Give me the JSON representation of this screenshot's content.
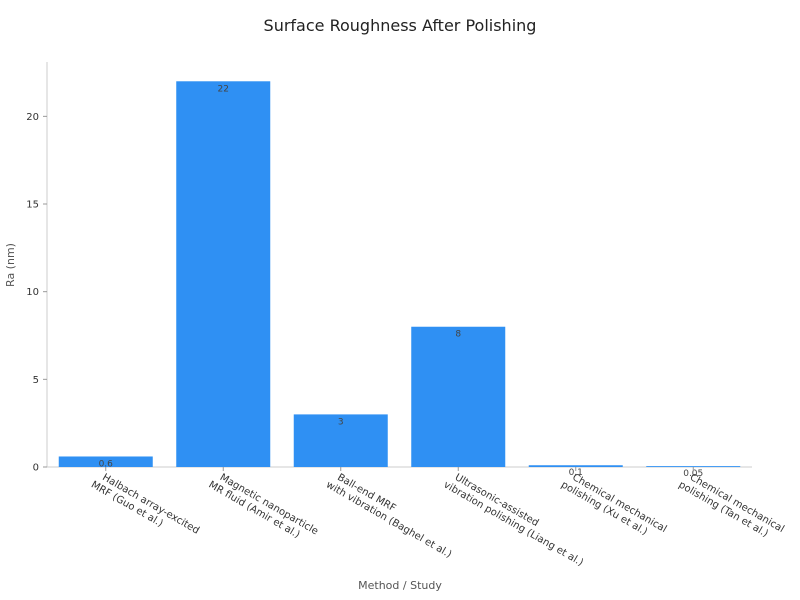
{
  "chart_data": {
    "type": "bar",
    "title": "Surface Roughness After Polishing",
    "x_label": "Method / Study",
    "y_label": "Ra (nm)",
    "categories": [
      [
        "Halbach array-excited",
        "MRF (Guo et al.)"
      ],
      [
        "Magnetic nanoparticle",
        "MR fluid (Amir et al.)"
      ],
      [
        "Ball-end MRF",
        "with vibration (Baghel et al.)"
      ],
      [
        "Ultrasonic-assisted",
        "vibration polishing (Liang et al.)"
      ],
      [
        "Chemical mechanical",
        "polishing (Xu et al.)"
      ],
      [
        "Chemical mechanical",
        "polishing (Tan et al.)"
      ]
    ],
    "values": [
      0.6,
      22,
      3,
      8,
      0.1,
      0.05
    ],
    "color": "#2f90f3",
    "ylim": [
      0,
      23.1
    ],
    "yticks": [
      0,
      5,
      10,
      15,
      20
    ],
    "grid": false
  }
}
